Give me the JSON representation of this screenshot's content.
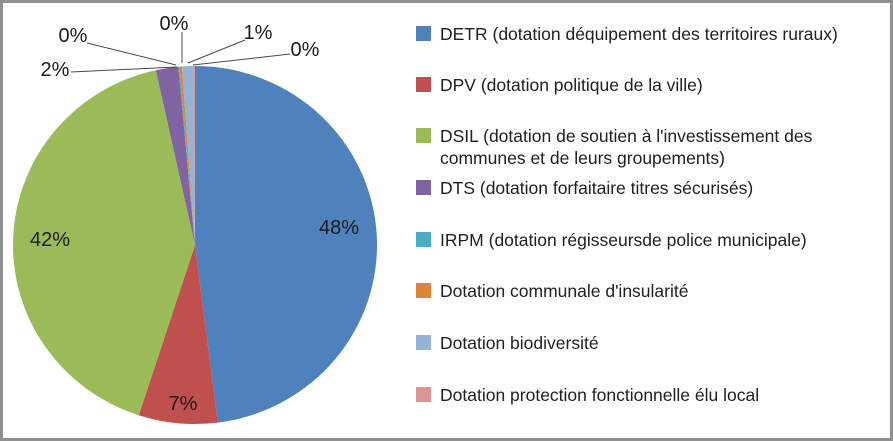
{
  "chart_data": {
    "type": "pie",
    "title": "",
    "legend_position": "right",
    "start_angle_deg": 0,
    "direction": "clockwise",
    "data_label_format": "percent",
    "slices": [
      {
        "label": "DETR (dotation déquipement des territoires ruraux)",
        "value_pct": 48,
        "data_label": "48%",
        "color": "#4F81BD",
        "label_placement": "inside"
      },
      {
        "label": "DPV (dotation politique de la ville)",
        "value_pct": 7,
        "data_label": "7%",
        "color": "#C0504D",
        "label_placement": "inside"
      },
      {
        "label": "DSIL (dotation de soutien à l'investissement des communes et de leurs groupements)",
        "value_pct": 42,
        "data_label": "42%",
        "color": "#9BBB59",
        "label_placement": "inside"
      },
      {
        "label": "DTS (dotation forfaitaire titres sécurisés)",
        "value_pct": 2,
        "data_label": "2%",
        "color": "#8064A2",
        "label_placement": "outside"
      },
      {
        "label": "IRPM (dotation régisseursde police municipale)",
        "value_pct": 0,
        "data_label": "0%",
        "color": "#4BACC6",
        "label_placement": "outside"
      },
      {
        "label": "Dotation communale d'insularité",
        "value_pct": 0,
        "data_label": "0%",
        "color": "#DC8633",
        "label_placement": "outside"
      },
      {
        "label": "Dotation biodiversité",
        "value_pct": 1,
        "data_label": "1%",
        "color": "#95B3D7",
        "label_placement": "outside"
      },
      {
        "label": "Dotation protection fonctionnelle élu local",
        "value_pct": 0,
        "data_label": "0%",
        "color": "#D99694",
        "label_placement": "outside"
      }
    ]
  },
  "colors": {
    "frame_border": "#909090",
    "label_text": "#1a1a1a",
    "legend_text": "#1f1f1f",
    "leader_line": "#4a4a4a",
    "background": "#ffffff"
  }
}
